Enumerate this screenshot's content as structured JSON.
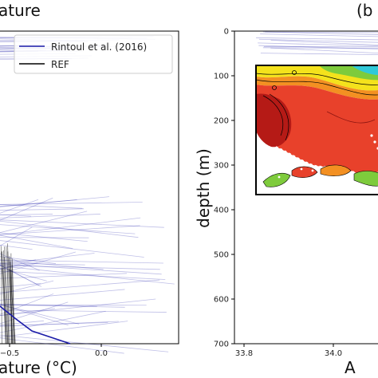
{
  "chart_data": [
    {
      "type": "line",
      "panel": "left",
      "title": "ature",
      "xlabel": "ature (°C)",
      "x_ticks": [
        -0.5,
        0.0
      ],
      "x_tick_labels": [
        "−0.5",
        "0.0"
      ],
      "legend_position": "top-right",
      "series": [
        {
          "name": "Rintoul et al. (2016)",
          "color": "#1a1aa8",
          "style": "thin translucent profiles plus one bold profile"
        },
        {
          "name": "REF",
          "color": "#000000",
          "style": "thin translucent profiles"
        }
      ]
    },
    {
      "type": "line",
      "panel": "right",
      "panel_label": "(b",
      "xlabel": "A",
      "ylabel": "depth (m)",
      "ylim": [
        0,
        700
      ],
      "y_inverted": true,
      "y_ticks": [
        0,
        100,
        200,
        300,
        400,
        500,
        600,
        700
      ],
      "y_tick_labels": [
        "0",
        "100",
        "200",
        "300",
        "400",
        "500",
        "600",
        "700"
      ],
      "x_ticks": [
        33.8,
        34.0
      ],
      "x_tick_labels": [
        "33.8",
        "34.0"
      ],
      "inset": "colored map of ice shelf region with contours",
      "series": [
        {
          "color": "#1a1aa8",
          "style": "thin translucent profiles"
        }
      ]
    }
  ],
  "colors": {
    "rintoul": "#1a1aa8",
    "ref": "#000000",
    "map_red": "#e8412b",
    "map_dark_red": "#b51a16",
    "map_orange": "#f39022",
    "map_yellow": "#f4e21c",
    "map_green": "#7ecb3c",
    "map_cyan": "#30c9d9"
  }
}
